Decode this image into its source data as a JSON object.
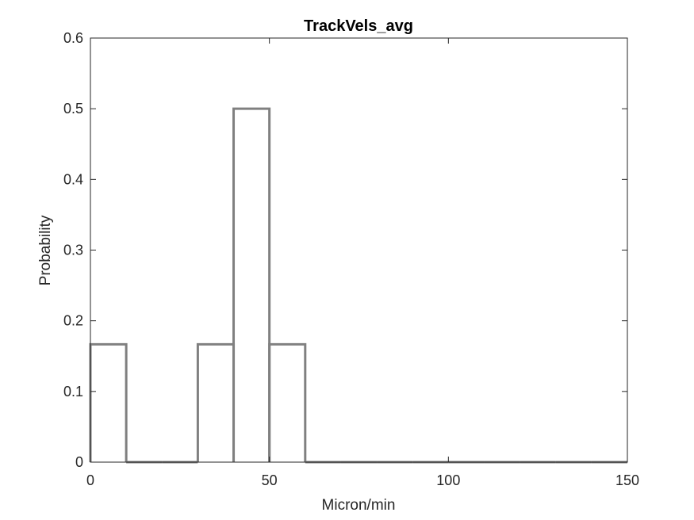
{
  "chart_data": {
    "type": "histogram",
    "title": "TrackVels_avg",
    "xlabel": "Micron/min",
    "ylabel": "Probability",
    "xlim": [
      0,
      150
    ],
    "ylim": [
      0,
      0.6
    ],
    "xticks": [
      0,
      50,
      100,
      150
    ],
    "yticks": [
      0,
      0.1,
      0.2,
      0.3,
      0.4,
      0.5,
      0.6
    ],
    "xtick_labels": [
      "0",
      "50",
      "100",
      "150"
    ],
    "ytick_labels": [
      "0",
      "0.1",
      "0.2",
      "0.3",
      "0.4",
      "0.5",
      "0.6"
    ],
    "bin_edges": [
      0,
      10,
      20,
      30,
      40,
      50,
      60,
      70,
      80,
      90,
      100,
      110,
      120,
      130,
      140,
      150
    ],
    "values": [
      0.1667,
      0,
      0,
      0.1667,
      0.5,
      0.1667,
      0,
      0,
      0,
      0,
      0,
      0,
      0,
      0,
      0
    ],
    "display_style": "stairs",
    "line_color": "#808080",
    "grid": false,
    "box": true
  }
}
